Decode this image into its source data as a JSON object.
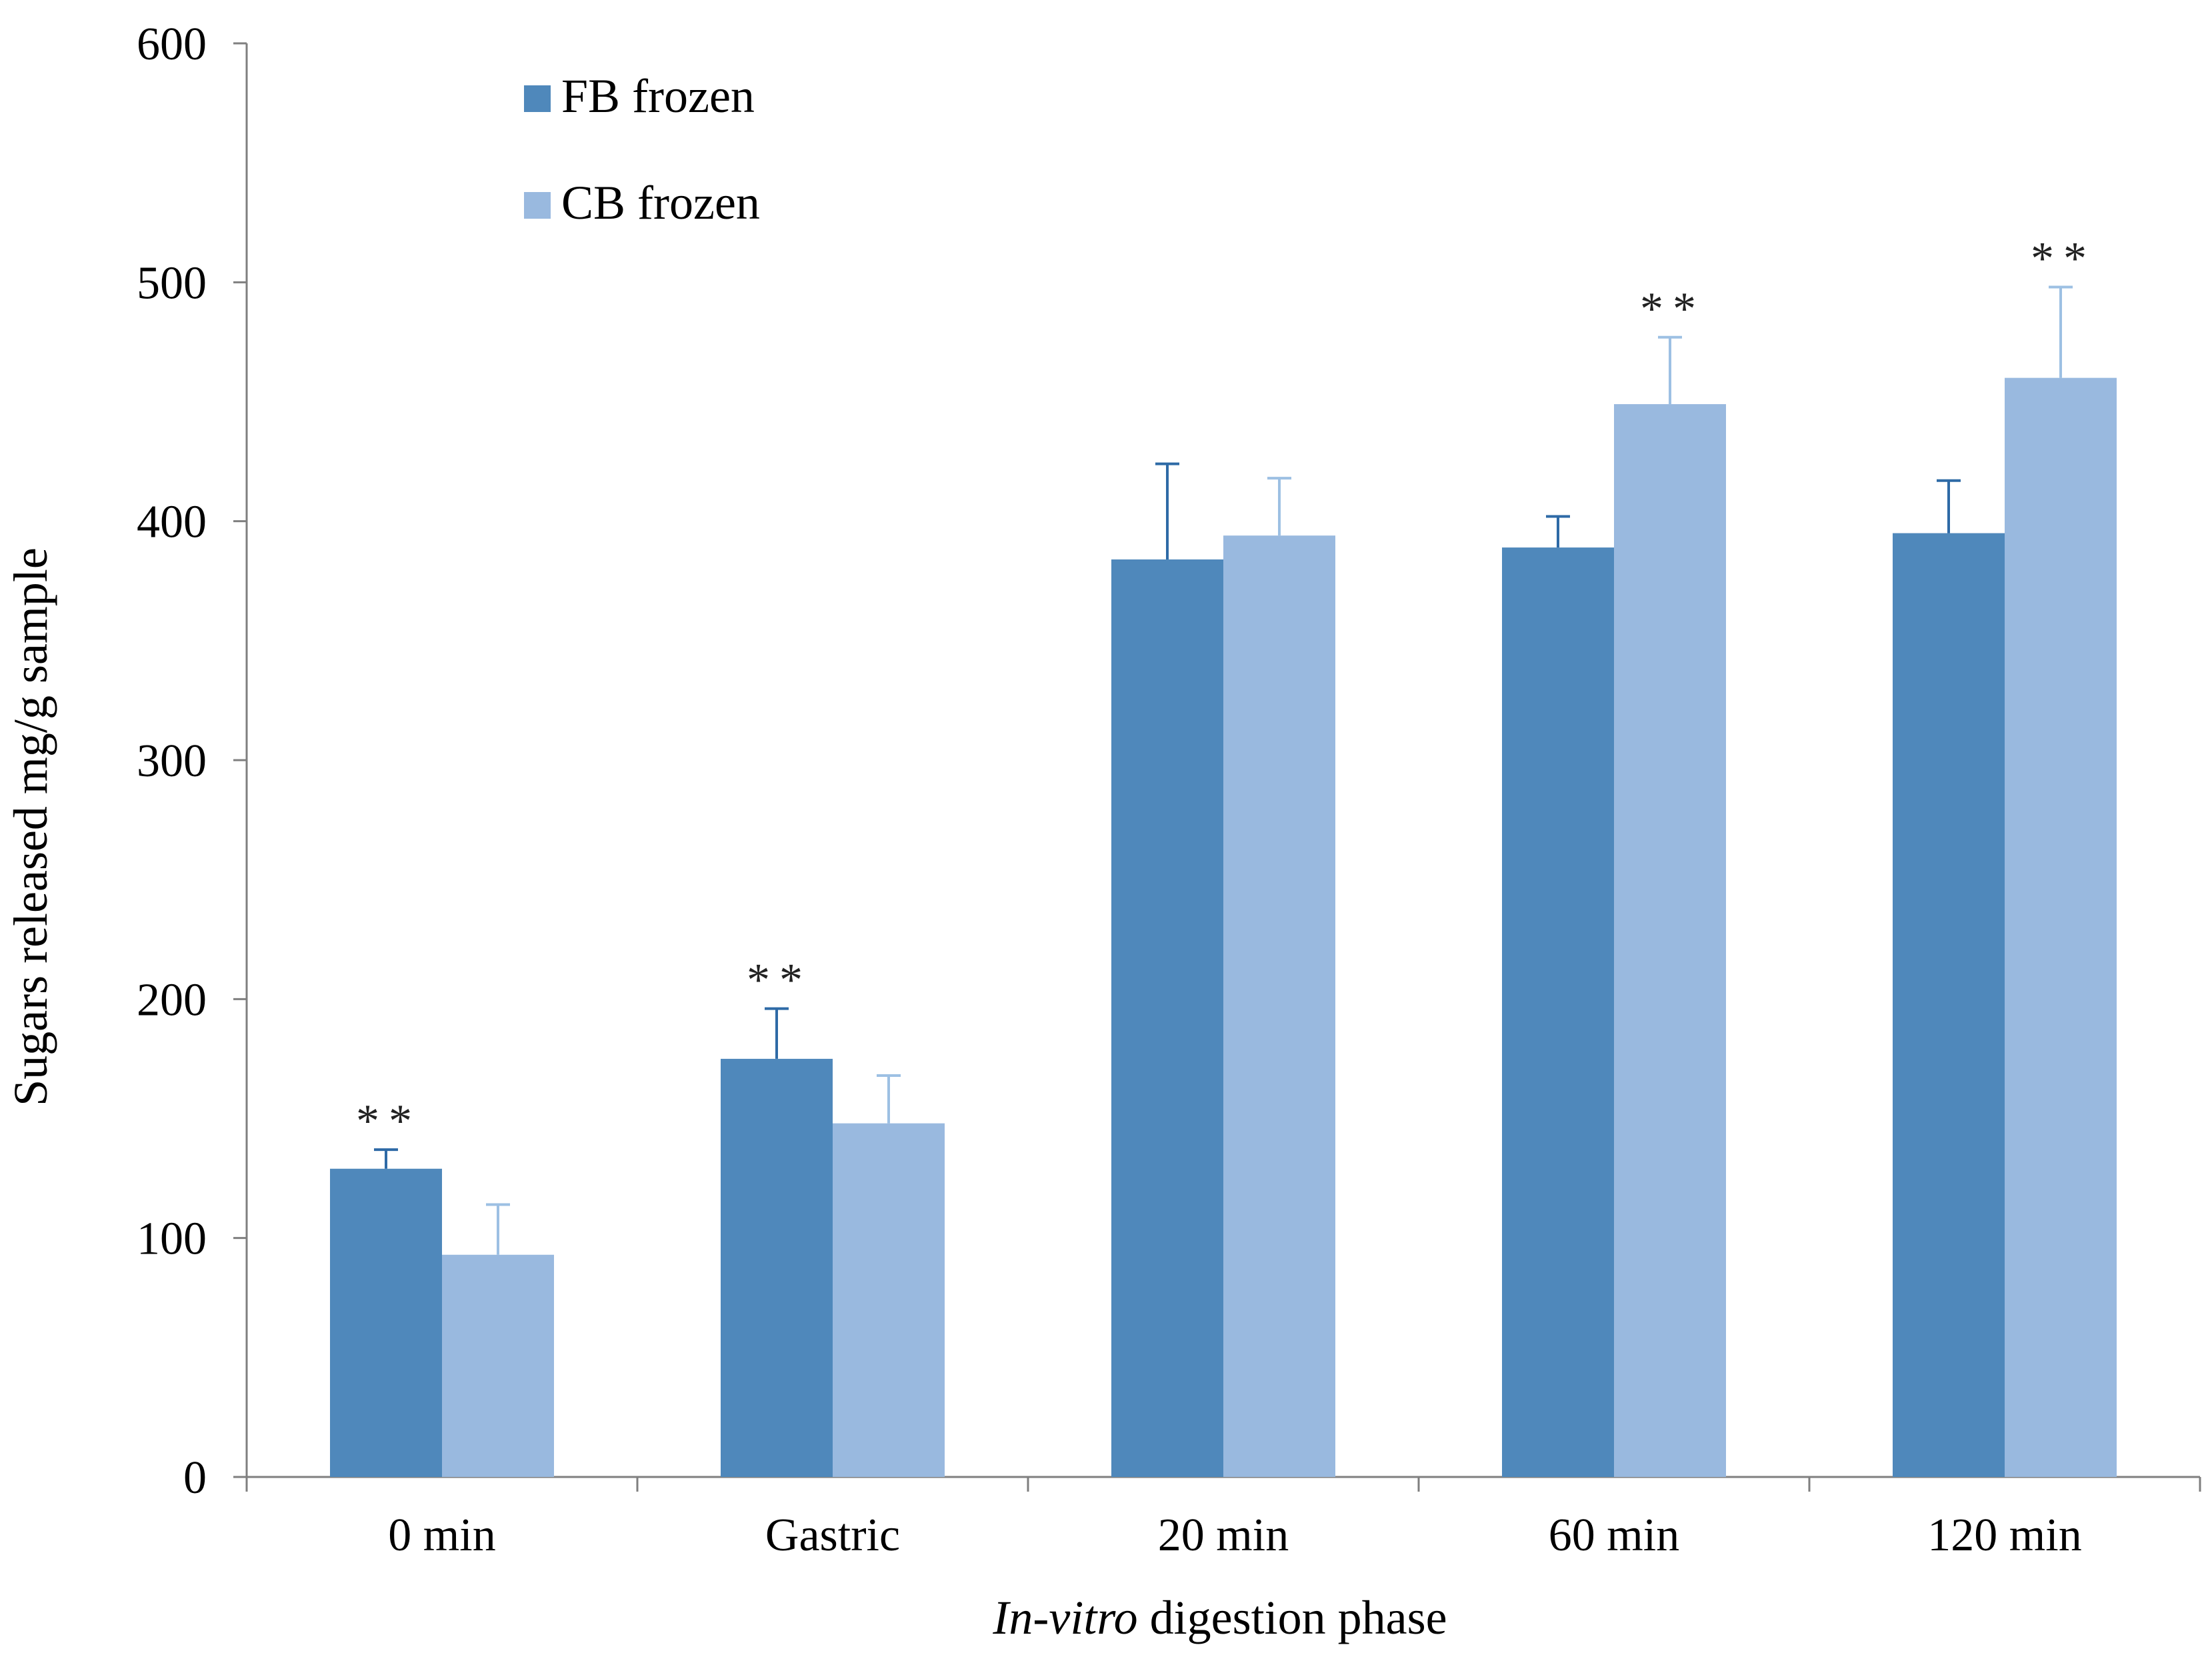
{
  "chart_data": {
    "type": "bar",
    "categories": [
      "0 min",
      "Gastric",
      "20 min",
      "60 min",
      "120 min"
    ],
    "series": [
      {
        "name": "FB frozen",
        "color": "#4f88bb",
        "values": [
          129,
          175,
          384,
          389,
          395
        ],
        "errors": [
          8,
          21,
          40,
          13,
          22
        ],
        "significance": [
          "**",
          "**",
          "",
          "",
          ""
        ]
      },
      {
        "name": "CB frozen",
        "color": "#99b9df",
        "values": [
          93,
          148,
          394,
          449,
          460
        ],
        "errors": [
          21,
          20,
          24,
          28,
          38
        ],
        "significance": [
          "",
          "",
          "",
          "**",
          "**"
        ]
      }
    ],
    "xlabel_italic": "In-vitro",
    "xlabel_rest": " digestion phase",
    "ylabel": "Sugars released mg/g sample",
    "ylim": [
      0,
      600
    ],
    "yticks": [
      0,
      100,
      200,
      300,
      400,
      500,
      600
    ],
    "grid": false,
    "legend_position": "top-left"
  }
}
